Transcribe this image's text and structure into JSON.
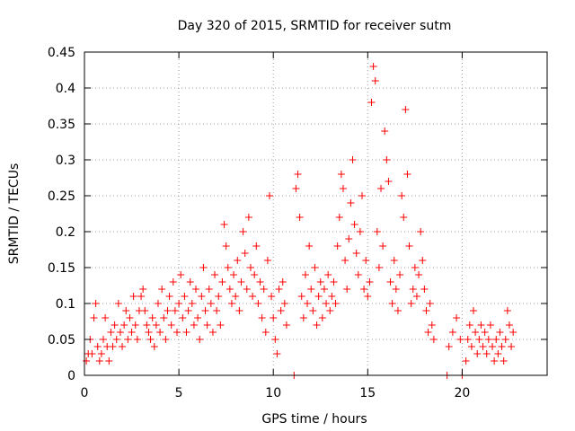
{
  "chart_data": {
    "type": "scatter",
    "title": "Day 320 of 2015, SRMTID for receiver sutm",
    "xlabel": "GPS time / hours",
    "ylabel": "SRMTID / TECUs",
    "xlim": [
      0,
      24.5
    ],
    "ylim": [
      0,
      0.45
    ],
    "xticks": [
      0,
      5,
      10,
      15,
      20
    ],
    "xtick_labels": [
      "0",
      "5",
      "10",
      "15",
      "20"
    ],
    "yticks": [
      0,
      0.05,
      0.1,
      0.15,
      0.2,
      0.25,
      0.3,
      0.35,
      0.4,
      0.45
    ],
    "ytick_labels": [
      "0",
      "0.05",
      "0.1",
      "0.15",
      "0.2",
      "0.25",
      "0.3",
      "0.35",
      "0.4",
      "0.45"
    ],
    "grid": true,
    "marker": "+",
    "series": [
      {
        "name": "SRMTID",
        "color": "#ff0000",
        "points": [
          [
            0.1,
            0.02
          ],
          [
            0.2,
            0.03
          ],
          [
            0.3,
            0.05
          ],
          [
            0.4,
            0.03
          ],
          [
            0.5,
            0.08
          ],
          [
            0.6,
            0.1
          ],
          [
            0.7,
            0.04
          ],
          [
            0.8,
            0.02
          ],
          [
            0.9,
            0.03
          ],
          [
            1.0,
            0.05
          ],
          [
            1.1,
            0.08
          ],
          [
            1.2,
            0.04
          ],
          [
            1.3,
            0.02
          ],
          [
            1.4,
            0.06
          ],
          [
            1.5,
            0.04
          ],
          [
            1.6,
            0.07
          ],
          [
            1.7,
            0.05
          ],
          [
            1.8,
            0.1
          ],
          [
            1.9,
            0.06
          ],
          [
            2.0,
            0.04
          ],
          [
            2.1,
            0.07
          ],
          [
            2.2,
            0.09
          ],
          [
            2.3,
            0.05
          ],
          [
            2.4,
            0.08
          ],
          [
            2.5,
            0.06
          ],
          [
            2.6,
            0.11
          ],
          [
            2.7,
            0.07
          ],
          [
            2.8,
            0.05
          ],
          [
            2.9,
            0.09
          ],
          [
            3.0,
            0.11
          ],
          [
            3.1,
            0.12
          ],
          [
            3.2,
            0.09
          ],
          [
            3.3,
            0.07
          ],
          [
            3.4,
            0.06
          ],
          [
            3.5,
            0.05
          ],
          [
            3.6,
            0.08
          ],
          [
            3.7,
            0.04
          ],
          [
            3.8,
            0.07
          ],
          [
            3.9,
            0.1
          ],
          [
            4.0,
            0.06
          ],
          [
            4.1,
            0.12
          ],
          [
            4.2,
            0.08
          ],
          [
            4.3,
            0.05
          ],
          [
            4.4,
            0.09
          ],
          [
            4.5,
            0.11
          ],
          [
            4.6,
            0.07
          ],
          [
            4.7,
            0.13
          ],
          [
            4.8,
            0.09
          ],
          [
            4.9,
            0.06
          ],
          [
            5.0,
            0.1
          ],
          [
            5.1,
            0.14
          ],
          [
            5.2,
            0.08
          ],
          [
            5.3,
            0.11
          ],
          [
            5.4,
            0.06
          ],
          [
            5.5,
            0.09
          ],
          [
            5.6,
            0.13
          ],
          [
            5.7,
            0.1
          ],
          [
            5.8,
            0.07
          ],
          [
            5.9,
            0.12
          ],
          [
            6.0,
            0.08
          ],
          [
            6.1,
            0.05
          ],
          [
            6.2,
            0.11
          ],
          [
            6.3,
            0.15
          ],
          [
            6.4,
            0.09
          ],
          [
            6.5,
            0.07
          ],
          [
            6.6,
            0.12
          ],
          [
            6.7,
            0.1
          ],
          [
            6.8,
            0.06
          ],
          [
            6.9,
            0.14
          ],
          [
            7.0,
            0.09
          ],
          [
            7.1,
            0.11
          ],
          [
            7.2,
            0.07
          ],
          [
            7.3,
            0.13
          ],
          [
            7.4,
            0.21
          ],
          [
            7.5,
            0.18
          ],
          [
            7.6,
            0.15
          ],
          [
            7.7,
            0.12
          ],
          [
            7.8,
            0.1
          ],
          [
            7.9,
            0.14
          ],
          [
            8.0,
            0.11
          ],
          [
            8.1,
            0.16
          ],
          [
            8.2,
            0.09
          ],
          [
            8.3,
            0.13
          ],
          [
            8.4,
            0.2
          ],
          [
            8.5,
            0.17
          ],
          [
            8.6,
            0.12
          ],
          [
            8.7,
            0.22
          ],
          [
            8.8,
            0.15
          ],
          [
            8.9,
            0.11
          ],
          [
            9.0,
            0.14
          ],
          [
            9.1,
            0.18
          ],
          [
            9.2,
            0.1
          ],
          [
            9.3,
            0.13
          ],
          [
            9.4,
            0.08
          ],
          [
            9.5,
            0.12
          ],
          [
            9.6,
            0.06
          ],
          [
            9.7,
            0.16
          ],
          [
            9.8,
            0.25
          ],
          [
            9.9,
            0.11
          ],
          [
            10.0,
            0.08
          ],
          [
            10.1,
            0.05
          ],
          [
            10.2,
            0.03
          ],
          [
            10.3,
            0.12
          ],
          [
            10.4,
            0.09
          ],
          [
            10.5,
            0.13
          ],
          [
            10.6,
            0.1
          ],
          [
            10.7,
            0.07
          ],
          [
            11.1,
            0.0
          ],
          [
            11.2,
            0.26
          ],
          [
            11.3,
            0.28
          ],
          [
            11.4,
            0.22
          ],
          [
            11.5,
            0.11
          ],
          [
            11.6,
            0.08
          ],
          [
            11.7,
            0.14
          ],
          [
            11.8,
            0.1
          ],
          [
            11.9,
            0.18
          ],
          [
            12.0,
            0.12
          ],
          [
            12.1,
            0.09
          ],
          [
            12.2,
            0.15
          ],
          [
            12.3,
            0.07
          ],
          [
            12.4,
            0.11
          ],
          [
            12.5,
            0.13
          ],
          [
            12.6,
            0.08
          ],
          [
            12.7,
            0.12
          ],
          [
            12.8,
            0.1
          ],
          [
            12.9,
            0.14
          ],
          [
            13.0,
            0.09
          ],
          [
            13.1,
            0.11
          ],
          [
            13.2,
            0.13
          ],
          [
            13.3,
            0.1
          ],
          [
            13.4,
            0.18
          ],
          [
            13.5,
            0.22
          ],
          [
            13.6,
            0.28
          ],
          [
            13.7,
            0.26
          ],
          [
            13.8,
            0.16
          ],
          [
            13.9,
            0.12
          ],
          [
            14.0,
            0.19
          ],
          [
            14.1,
            0.24
          ],
          [
            14.2,
            0.3
          ],
          [
            14.3,
            0.21
          ],
          [
            14.4,
            0.17
          ],
          [
            14.5,
            0.14
          ],
          [
            14.6,
            0.2
          ],
          [
            14.7,
            0.25
          ],
          [
            14.8,
            0.12
          ],
          [
            14.9,
            0.16
          ],
          [
            15.0,
            0.11
          ],
          [
            15.1,
            0.13
          ],
          [
            15.2,
            0.38
          ],
          [
            15.3,
            0.43
          ],
          [
            15.4,
            0.41
          ],
          [
            15.5,
            0.2
          ],
          [
            15.6,
            0.15
          ],
          [
            15.7,
            0.26
          ],
          [
            15.8,
            0.18
          ],
          [
            15.9,
            0.34
          ],
          [
            16.0,
            0.3
          ],
          [
            16.1,
            0.27
          ],
          [
            16.2,
            0.13
          ],
          [
            16.3,
            0.1
          ],
          [
            16.4,
            0.16
          ],
          [
            16.5,
            0.12
          ],
          [
            16.6,
            0.09
          ],
          [
            16.7,
            0.14
          ],
          [
            16.8,
            0.25
          ],
          [
            16.9,
            0.22
          ],
          [
            17.0,
            0.37
          ],
          [
            17.1,
            0.28
          ],
          [
            17.2,
            0.18
          ],
          [
            17.3,
            0.1
          ],
          [
            17.4,
            0.12
          ],
          [
            17.5,
            0.15
          ],
          [
            17.6,
            0.11
          ],
          [
            17.7,
            0.14
          ],
          [
            17.8,
            0.2
          ],
          [
            17.9,
            0.16
          ],
          [
            18.0,
            0.12
          ],
          [
            18.1,
            0.09
          ],
          [
            18.2,
            0.06
          ],
          [
            18.3,
            0.1
          ],
          [
            18.4,
            0.07
          ],
          [
            18.5,
            0.05
          ],
          [
            19.2,
            0.0
          ],
          [
            19.3,
            0.04
          ],
          [
            19.5,
            0.06
          ],
          [
            19.7,
            0.08
          ],
          [
            19.9,
            0.05
          ],
          [
            20.0,
            0.0
          ],
          [
            20.2,
            0.02
          ],
          [
            20.3,
            0.05
          ],
          [
            20.4,
            0.07
          ],
          [
            20.5,
            0.04
          ],
          [
            20.6,
            0.09
          ],
          [
            20.7,
            0.06
          ],
          [
            20.8,
            0.03
          ],
          [
            20.9,
            0.05
          ],
          [
            21.0,
            0.07
          ],
          [
            21.1,
            0.04
          ],
          [
            21.2,
            0.06
          ],
          [
            21.3,
            0.03
          ],
          [
            21.4,
            0.05
          ],
          [
            21.5,
            0.07
          ],
          [
            21.6,
            0.04
          ],
          [
            21.7,
            0.02
          ],
          [
            21.8,
            0.05
          ],
          [
            21.9,
            0.03
          ],
          [
            22.0,
            0.06
          ],
          [
            22.1,
            0.04
          ],
          [
            22.2,
            0.02
          ],
          [
            22.3,
            0.05
          ],
          [
            22.4,
            0.09
          ],
          [
            22.5,
            0.07
          ],
          [
            22.6,
            0.04
          ],
          [
            22.7,
            0.06
          ]
        ]
      }
    ]
  }
}
